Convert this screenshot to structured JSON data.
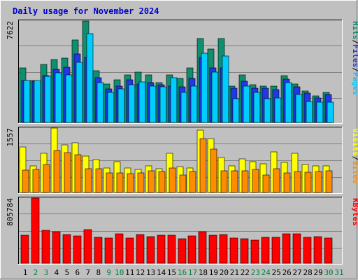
{
  "chart_data": {
    "type": "bar",
    "title": "Daily usage for November 2024",
    "days": [
      "1",
      "2",
      "3",
      "4",
      "5",
      "6",
      "7",
      "8",
      "9",
      "10",
      "11",
      "12",
      "13",
      "14",
      "15",
      "16",
      "17",
      "18",
      "19",
      "20",
      "21",
      "22",
      "23",
      "24",
      "25",
      "26",
      "27",
      "28",
      "29",
      "30",
      "31"
    ],
    "weekend_days": [
      "2",
      "3",
      "9",
      "10",
      "16",
      "17",
      "23",
      "24",
      "30",
      "31"
    ],
    "panels": [
      {
        "id": "hits",
        "max_label": "7622",
        "ymax": 7622,
        "right_labels": [
          "Pages",
          "Files",
          "Hits"
        ],
        "series": [
          {
            "name": "Hits",
            "color": "#0f8f6e",
            "values": [
              4100,
              3170,
              4380,
              4740,
              4860,
              6200,
              7600,
              3900,
              2880,
              3230,
              3600,
              3800,
              3600,
              3000,
              3600,
              3300,
              4100,
              6300,
              5500,
              6320,
              2720,
              3580,
              2820,
              2750,
              2750,
              3500,
              2870,
              2340,
              2000,
              2240,
              0
            ]
          },
          {
            "name": "Files",
            "color": "#2038e6",
            "values": [
              3170,
              3100,
              3530,
              4000,
              4170,
              5150,
              4900,
              3340,
              2510,
              2730,
              3200,
              2900,
              3000,
              2860,
              2750,
              2700,
              3300,
              4900,
              4100,
              4100,
              2600,
              3100,
              2600,
              2600,
              2450,
              3260,
              2680,
              2200,
              1850,
              2080,
              0
            ]
          },
          {
            "name": "Pages",
            "color": "#00ccff",
            "values": [
              3150,
              3150,
              3480,
              3750,
              3600,
              4500,
              6700,
              3000,
              2250,
              2520,
              2850,
              3050,
              2750,
              2660,
              3350,
              2280,
              2720,
              5200,
              3800,
              5000,
              1800,
              2730,
              2250,
              1800,
              1850,
              3000,
              2110,
              1600,
              1510,
              1510,
              0
            ]
          }
        ]
      },
      {
        "id": "visits",
        "max_label": "1557",
        "ymax": 1557,
        "right_labels": [
          "Sites",
          "Visits"
        ],
        "series": [
          {
            "name": "Visits",
            "color": "#ffff00",
            "values": [
              1100,
              650,
              950,
              1550,
              1150,
              1200,
              880,
              800,
              600,
              750,
              600,
              560,
              650,
              570,
              950,
              630,
              600,
              1500,
              1300,
              840,
              650,
              820,
              750,
              690,
              990,
              720,
              940,
              680,
              640,
              650,
              0
            ]
          },
          {
            "name": "Sites",
            "color": "#ff8c00",
            "values": [
              550,
              560,
              670,
              1020,
              960,
              920,
              580,
              570,
              470,
              480,
              450,
              470,
              520,
              510,
              590,
              420,
              500,
              1300,
              1050,
              530,
              520,
              530,
              560,
              430,
              580,
              480,
              510,
              490,
              500,
              520,
              0
            ]
          }
        ]
      },
      {
        "id": "kbytes",
        "max_label": "805784",
        "ymax": 805784,
        "right_labels": [
          "KBytes"
        ],
        "series": [
          {
            "name": "KBytes",
            "color": "#ff0000",
            "values": [
              350000,
              805000,
              405000,
              390000,
              355000,
              335000,
              412000,
              320000,
              315000,
              360000,
              312000,
              352000,
              332000,
              345000,
              348000,
              302000,
              335000,
              390000,
              350000,
              352000,
              315000,
              305000,
              290000,
              322000,
              322000,
              367000,
              364000,
              320000,
              327000,
              315000,
              0
            ]
          }
        ]
      }
    ],
    "label_colors": {
      "Hits": "#0f8f6e",
      "Files": "#2038e6",
      "Pages": "#00ccff",
      "Visits": "#ffff00",
      "Sites": "#ff8c00",
      "KBytes": "#ff0000",
      "separator": "#000000"
    }
  }
}
